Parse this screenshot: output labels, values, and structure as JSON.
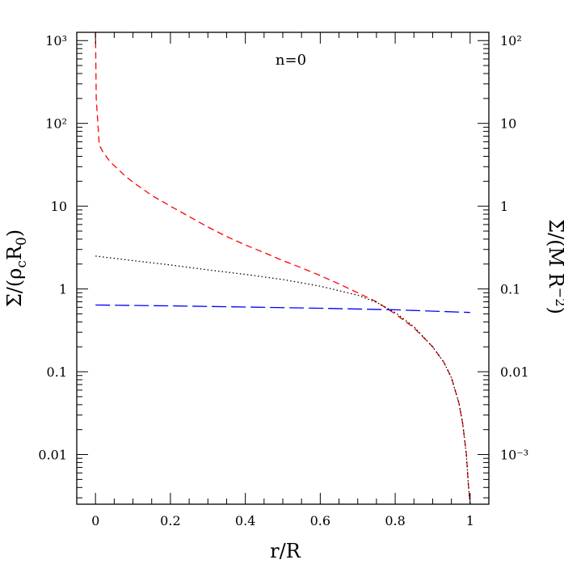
{
  "chart_data": {
    "type": "line",
    "annotation": "n=0",
    "xlabel": "r/R",
    "ylabel_left": "Σ/(ρ_c R_0)",
    "ylabel_right": "Σ/(M R⁻²)",
    "xlim": [
      -0.05,
      1.05
    ],
    "ylim_log10": [
      -2.6,
      3.1
    ],
    "yscale": "log",
    "x_ticks": [
      {
        "v": 0,
        "label": "0"
      },
      {
        "v": 0.2,
        "label": "0.2"
      },
      {
        "v": 0.4,
        "label": "0.4"
      },
      {
        "v": 0.6,
        "label": "0.6"
      },
      {
        "v": 0.8,
        "label": "0.8"
      },
      {
        "v": 1,
        "label": "1"
      }
    ],
    "y_left_ticks": [
      {
        "exp": 3,
        "label": "10³"
      },
      {
        "exp": 2,
        "label": "10²"
      },
      {
        "exp": 1,
        "label": "10"
      },
      {
        "exp": 0,
        "label": "1"
      },
      {
        "exp": -1,
        "label": "0.1"
      },
      {
        "exp": -2,
        "label": "0.01"
      }
    ],
    "y_right_ticks": [
      {
        "exp": 3,
        "label": "10²"
      },
      {
        "exp": 2,
        "label": "10"
      },
      {
        "exp": 1,
        "label": "1"
      },
      {
        "exp": 0,
        "label": "0.1"
      },
      {
        "exp": -1,
        "label": "0.01"
      },
      {
        "exp": -2,
        "label": "10⁻³"
      }
    ],
    "series": [
      {
        "color": "#ff0000",
        "dash": "8,5",
        "points": [
          [
            0.0,
            1300
          ],
          [
            0.002,
            200
          ],
          [
            0.01,
            55
          ],
          [
            0.02,
            45
          ],
          [
            0.04,
            34
          ],
          [
            0.06,
            28
          ],
          [
            0.08,
            23
          ],
          [
            0.1,
            19.5
          ],
          [
            0.15,
            13.5
          ],
          [
            0.2,
            10
          ],
          [
            0.25,
            7.5
          ],
          [
            0.3,
            5.6
          ],
          [
            0.35,
            4.3
          ],
          [
            0.4,
            3.4
          ],
          [
            0.45,
            2.75
          ],
          [
            0.5,
            2.2
          ],
          [
            0.55,
            1.8
          ],
          [
            0.6,
            1.45
          ],
          [
            0.65,
            1.15
          ],
          [
            0.7,
            0.9
          ],
          [
            0.75,
            0.7
          ],
          [
            0.8,
            0.5
          ],
          [
            0.85,
            0.34
          ],
          [
            0.9,
            0.2
          ],
          [
            0.93,
            0.13
          ],
          [
            0.95,
            0.085
          ],
          [
            0.97,
            0.042
          ],
          [
            0.98,
            0.024
          ],
          [
            0.99,
            0.01
          ],
          [
            0.995,
            0.0045
          ],
          [
            1.0,
            0.0025
          ]
        ]
      },
      {
        "color": "#000000",
        "dash": "1.5,3",
        "points": [
          [
            0.0,
            2.5
          ],
          [
            0.1,
            2.2
          ],
          [
            0.2,
            1.95
          ],
          [
            0.3,
            1.7
          ],
          [
            0.4,
            1.5
          ],
          [
            0.5,
            1.3
          ],
          [
            0.6,
            1.08
          ],
          [
            0.7,
            0.84
          ],
          [
            0.75,
            0.69
          ],
          [
            0.8,
            0.52
          ],
          [
            0.85,
            0.35
          ],
          [
            0.9,
            0.2
          ],
          [
            0.93,
            0.13
          ],
          [
            0.95,
            0.085
          ],
          [
            0.97,
            0.042
          ],
          [
            0.98,
            0.024
          ],
          [
            0.99,
            0.01
          ],
          [
            0.995,
            0.0045
          ],
          [
            1.0,
            0.0025
          ]
        ]
      },
      {
        "color": "#0000ff",
        "dash": "18,6",
        "points": [
          [
            0.0,
            0.64
          ],
          [
            0.2,
            0.625
          ],
          [
            0.4,
            0.605
          ],
          [
            0.6,
            0.585
          ],
          [
            0.8,
            0.56
          ],
          [
            1.0,
            0.52
          ]
        ]
      }
    ]
  }
}
